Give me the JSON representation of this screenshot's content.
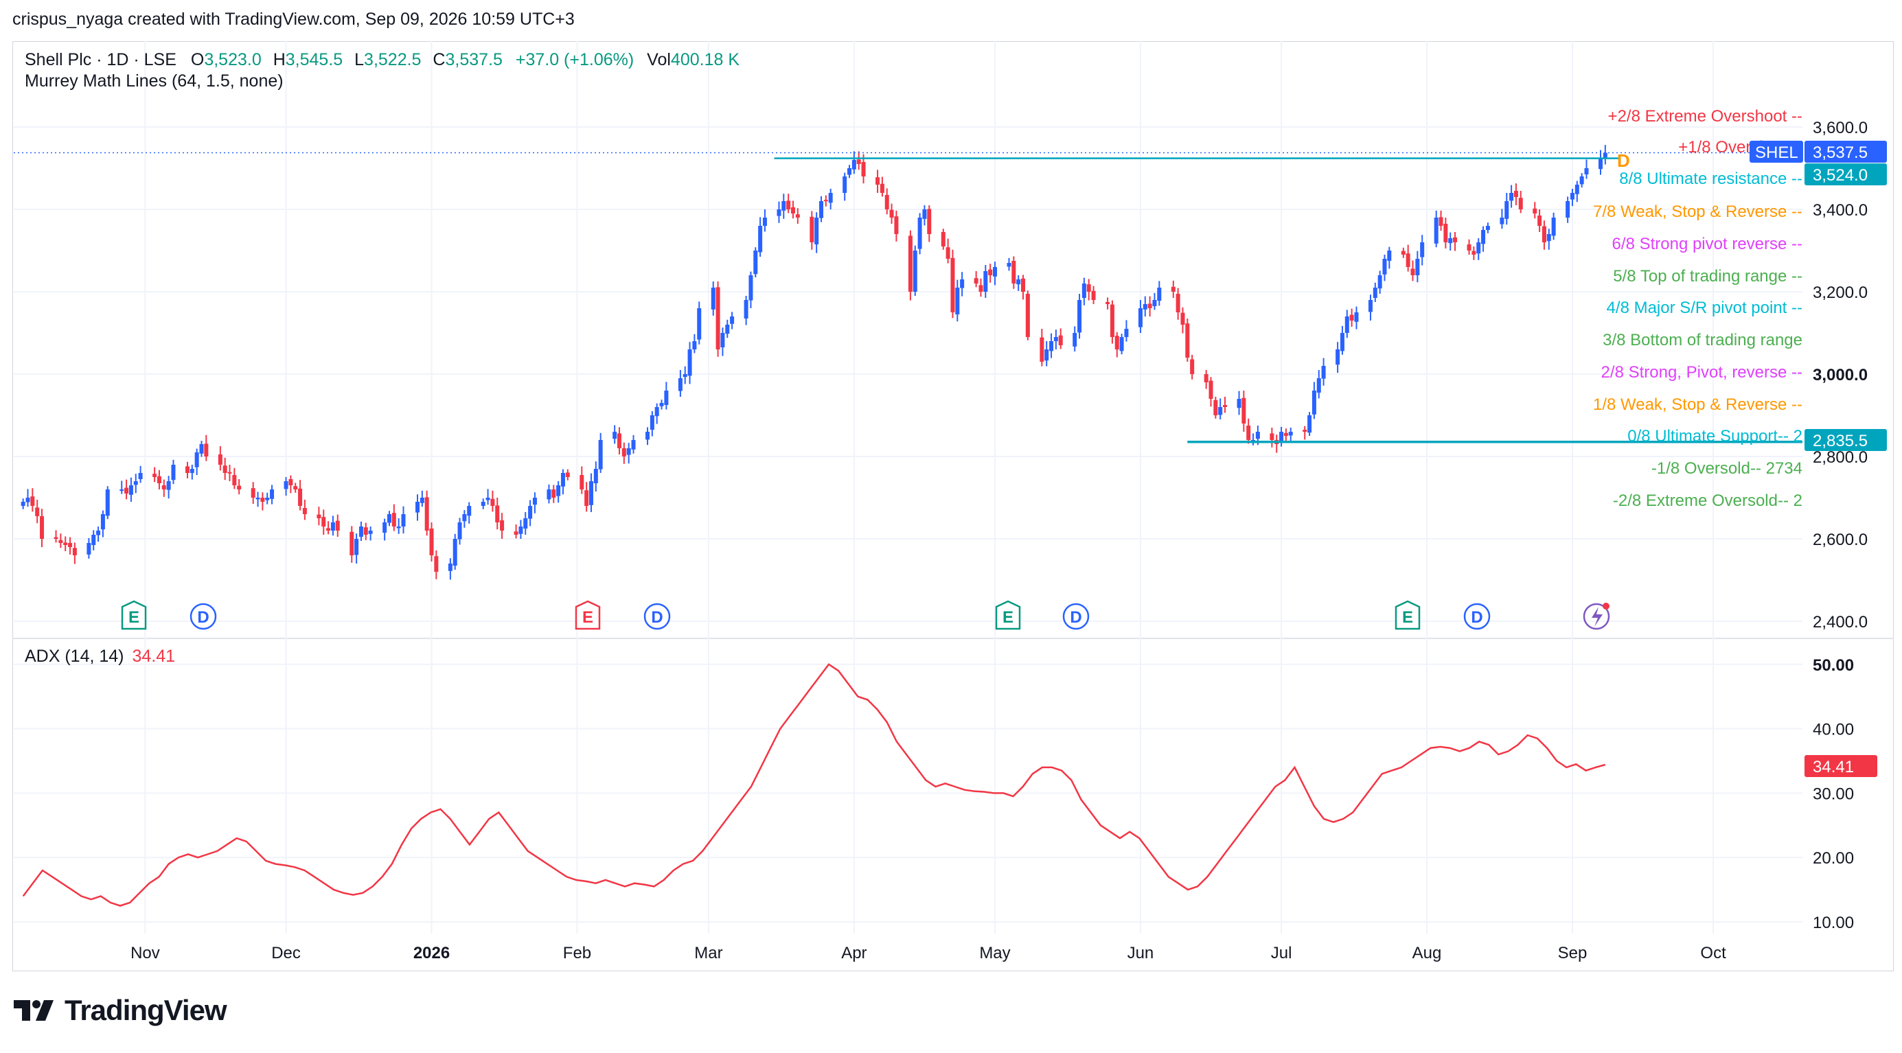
{
  "header": {
    "attribution": "crispus_nyaga created with TradingView.com, Sep 09, 2026 10:59 UTC+3"
  },
  "legend": {
    "symbol": "Shell Plc · 1D · LSE",
    "o_label": "O",
    "o_value": "3,523.0",
    "h_label": "H",
    "h_value": "3,545.5",
    "l_label": "L",
    "l_value": "3,522.5",
    "c_label": "C",
    "c_value": "3,537.5",
    "change": "+37.0 (+1.06%)",
    "vol_label": "Vol",
    "vol_value": "400.18 K",
    "indicator": "Murrey Math Lines (64, 1.5, none)",
    "adx_label": "ADX (14, 14)",
    "adx_value": "34.41"
  },
  "price_axis": {
    "ticks": [
      "3,600.0",
      "3,400.0",
      "3,200.0",
      "3,000.0",
      "2,800.0",
      "2,600.0",
      "2,400.0"
    ]
  },
  "adx_axis": {
    "ticks": [
      "50.00",
      "40.00",
      "30.00",
      "20.00",
      "10.00"
    ]
  },
  "time_axis": {
    "labels": [
      "Nov",
      "Dec",
      "2026",
      "Feb",
      "Mar",
      "Apr",
      "May",
      "Jun",
      "Jul",
      "Aug",
      "Sep",
      "Oct"
    ]
  },
  "badges": {
    "shel_label": "SHEL",
    "last_price": "3,537.5",
    "level_price": "3,524.0",
    "support_price": "2,835.5",
    "adx_current": "34.41",
    "dividend_marker": "D"
  },
  "murrey_lines": [
    {
      "text": "+2/8 Extreme Overshoot --",
      "color": "#f23645"
    },
    {
      "text": "+1/8 Overshoot--",
      "color": "#f23645"
    },
    {
      "text": "8/8 Ultimate resistance --",
      "color": "#00bcd4"
    },
    {
      "text": "7/8 Weak, Stop & Reverse --",
      "color": "#ff9800"
    },
    {
      "text": "6/8 Strong pivot reverse --",
      "color": "#e040fb"
    },
    {
      "text": "5/8 Top of trading range --",
      "color": "#4caf50"
    },
    {
      "text": "4/8 Major S/R pivot point --",
      "color": "#00bcd4"
    },
    {
      "text": "3/8 Bottom of trading range",
      "color": "#4caf50"
    },
    {
      "text": "2/8 Strong, Pivot, reverse --",
      "color": "#e040fb"
    },
    {
      "text": "1/8 Weak, Stop & Reverse --",
      "color": "#ff9800"
    },
    {
      "text": "0/8 Ultimate Support--  2",
      "color": "#00bcd4"
    },
    {
      "text": "-1/8 Oversold--  2734",
      "color": "#4caf50"
    },
    {
      "text": "-2/8 Extreme Oversold--  2",
      "color": "#4caf50"
    }
  ],
  "event_markers": [
    {
      "type": "E",
      "color": "#089981"
    },
    {
      "type": "D",
      "color": "#2962ff"
    },
    {
      "type": "E",
      "color": "#f23645"
    },
    {
      "type": "D",
      "color": "#2962ff"
    },
    {
      "type": "E",
      "color": "#089981"
    },
    {
      "type": "D",
      "color": "#2962ff"
    },
    {
      "type": "E",
      "color": "#089981"
    },
    {
      "type": "D",
      "color": "#2962ff"
    }
  ],
  "colors": {
    "up": "#2962ff",
    "down": "#f23645",
    "adx": "#f23645",
    "level": "#00a5bd",
    "grid": "#f0f3fa"
  },
  "chart_data": [
    {
      "type": "candlestick",
      "title": "Shell Plc · 1D · LSE",
      "ylim": [
        2360,
        3700
      ],
      "x_range": [
        "2025-10-04",
        "2026-10-20"
      ],
      "annotations": {
        "resistance_level": 3524.0,
        "support_level": 2835.5,
        "last_close": 3537.5
      },
      "series": [
        {
          "name": "SHEL",
          "close": [
            2690,
            2700,
            2680,
            2655,
            2600,
            2600,
            2590,
            2585,
            2580,
            2560,
            2590,
            2610,
            2620,
            2660,
            2720,
            2720,
            2710,
            2730,
            2740,
            2760,
            2750,
            2735,
            2720,
            2740,
            2780,
            2760,
            2770,
            2810,
            2830,
            2800,
            2780,
            2760,
            2760,
            2730,
            2720,
            2700,
            2700,
            2690,
            2700,
            2720,
            2740,
            2730,
            2720,
            2680,
            2660,
            2650,
            2630,
            2620,
            2640,
            2620,
            2560,
            2600,
            2630,
            2610,
            2620,
            2640,
            2660,
            2630,
            2630,
            2660,
            2690,
            2700,
            2620,
            2560,
            2520,
            2540,
            2600,
            2640,
            2660,
            2680,
            2690,
            2700,
            2680,
            2640,
            2620,
            2610,
            2630,
            2650,
            2680,
            2700,
            2720,
            2700,
            2730,
            2760,
            2750,
            2720,
            2680,
            2740,
            2770,
            2840,
            2860,
            2820,
            2800,
            2820,
            2840,
            2860,
            2900,
            2920,
            2930,
            2960,
            2990,
            3000,
            3060,
            3080,
            3160,
            3210,
            3060,
            3100,
            3120,
            3140,
            3180,
            3240,
            3300,
            3360,
            3380,
            3400,
            3420,
            3400,
            3390,
            3380,
            3320,
            3380,
            3420,
            3420,
            3440,
            3480,
            3500,
            3520,
            3510,
            3480,
            3460,
            3440,
            3400,
            3380,
            3340,
            3200,
            3300,
            3380,
            3400,
            3340,
            3310,
            3280,
            3150,
            3210,
            3230,
            3220,
            3200,
            3250,
            3240,
            3260,
            3270,
            3220,
            3230,
            3200,
            3090,
            3030,
            3060,
            3080,
            3090,
            3070,
            3100,
            3180,
            3220,
            3200,
            3180,
            3170,
            3090,
            3060,
            3090,
            3110,
            3160,
            3170,
            3160,
            3180,
            3210,
            3200,
            3150,
            3120,
            3040,
            3000,
            2980,
            2940,
            2900,
            2920,
            2920,
            2940,
            2880,
            2840,
            2840,
            2860,
            2840,
            2830,
            2860,
            2850,
            2860,
            2860,
            2900,
            2960,
            2990,
            3020,
            3060,
            3100,
            3140,
            3130,
            3150,
            3180,
            3210,
            3240,
            3280,
            3300,
            3290,
            3260,
            3240,
            3280,
            3320,
            3380,
            3360,
            3320,
            3330,
            3320,
            3300,
            3290,
            3320,
            3350,
            3360,
            3380,
            3420,
            3440,
            3430,
            3400,
            3390,
            3360,
            3320,
            3340,
            3380,
            3420,
            3440,
            3460,
            3480,
            3500,
            3524,
            3537.5
          ]
        }
      ]
    },
    {
      "type": "line",
      "title": "ADX (14, 14)",
      "ylim": [
        5,
        55
      ],
      "series": [
        {
          "name": "ADX",
          "values": [
            14,
            16,
            18,
            17,
            16,
            15,
            14,
            13.5,
            14,
            13,
            12.5,
            13,
            14.5,
            16,
            17,
            19,
            20,
            20.5,
            20,
            20.5,
            21,
            22,
            23,
            22.5,
            21,
            19.5,
            19,
            18.8,
            18.5,
            18,
            17,
            16,
            15,
            14.5,
            14.2,
            14.5,
            15.5,
            17,
            19,
            22,
            24.5,
            26,
            27,
            27.5,
            26,
            24,
            22,
            24,
            26,
            27,
            25,
            23,
            21,
            20,
            19,
            18,
            17,
            16.5,
            16.3,
            16,
            16.5,
            16,
            15.5,
            16,
            15.8,
            15.5,
            16.5,
            18,
            19,
            19.5,
            21,
            23,
            25,
            27,
            29,
            31,
            34,
            37,
            40,
            42,
            44,
            46,
            48,
            50,
            49,
            47,
            45,
            44.5,
            43,
            41,
            38,
            36,
            34,
            32,
            31,
            31.5,
            31,
            30.5,
            30.3,
            30.2,
            30,
            30,
            29.5,
            31,
            33,
            34,
            34,
            33.5,
            32,
            29,
            27,
            25,
            24,
            23,
            24,
            23,
            21,
            19,
            17,
            16,
            15,
            15.5,
            17,
            19,
            21,
            23,
            25,
            27,
            29,
            31,
            32,
            34,
            31,
            28,
            26,
            25.5,
            26,
            27,
            29,
            31,
            33,
            33.5,
            34,
            35,
            36,
            37,
            37.2,
            37,
            36.5,
            37,
            38,
            37.5,
            36,
            36.5,
            37.5,
            39,
            38.5,
            37,
            35,
            34,
            34.5,
            33.5,
            34,
            34.41
          ]
        }
      ]
    }
  ]
}
